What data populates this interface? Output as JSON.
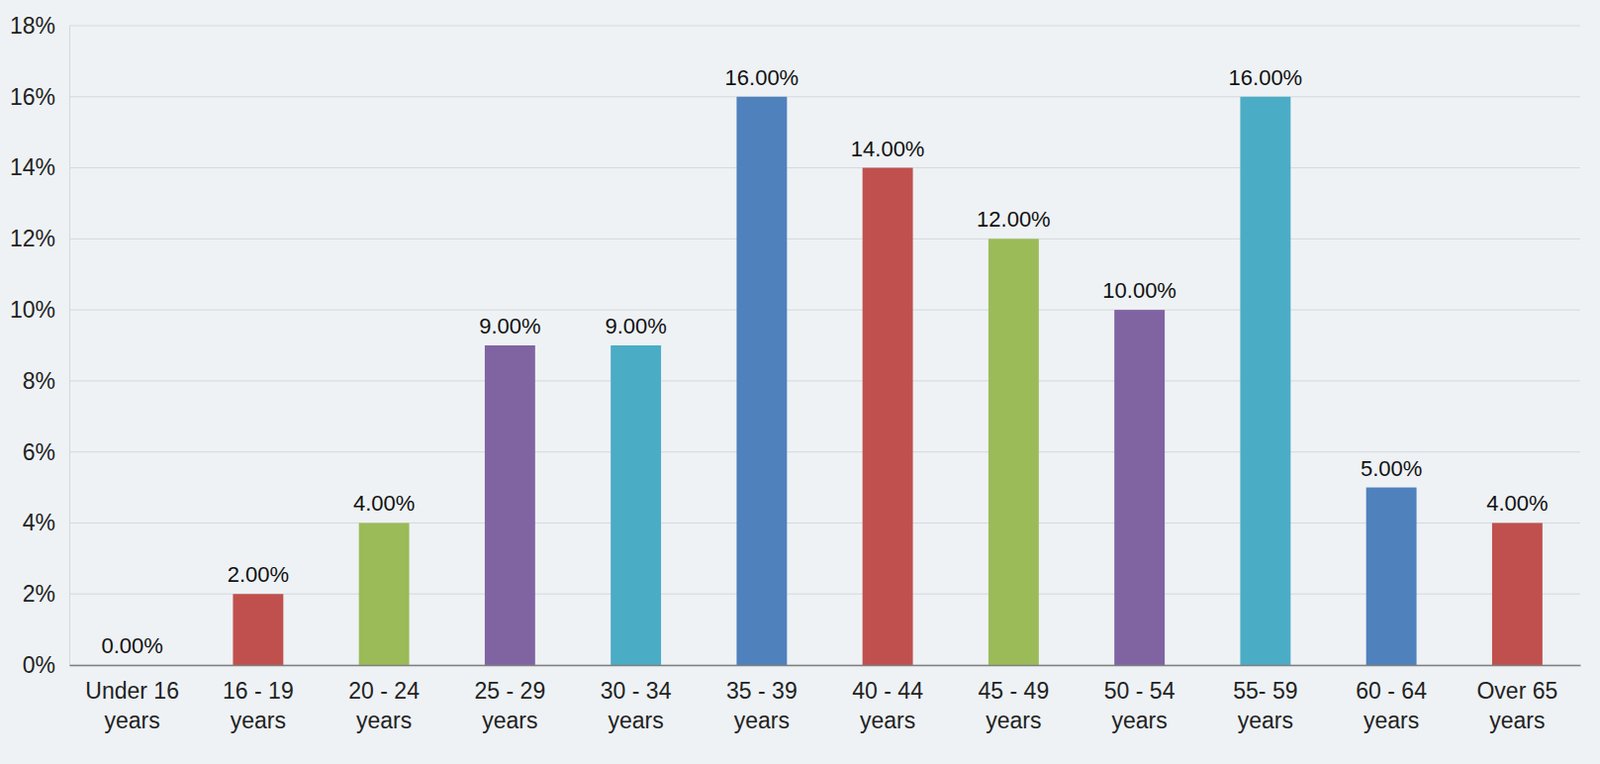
{
  "chart_data": {
    "type": "bar",
    "categories": [
      "Under 16 years",
      "16 - 19 years",
      "20 - 24 years",
      "25 - 29 years",
      "30 - 34 years",
      "35 - 39 years",
      "40 - 44 years",
      "45 - 49 years",
      "50 - 54 years",
      "55- 59 years",
      "60 - 64 years",
      "Over 65 years"
    ],
    "values": [
      0,
      2,
      4,
      9,
      9,
      16,
      14,
      12,
      10,
      16,
      5,
      4
    ],
    "value_labels": [
      "0.00%",
      "2.00%",
      "4.00%",
      "9.00%",
      "9.00%",
      "16.00%",
      "14.00%",
      "12.00%",
      "10.00%",
      "16.00%",
      "5.00%",
      "4.00%"
    ],
    "colors": [
      "#4f81bd",
      "#c0504d",
      "#9bbb59",
      "#8064a2",
      "#4bacc6",
      "#4f81bd",
      "#c0504d",
      "#9bbb59",
      "#8064a2",
      "#4bacc6",
      "#4f81bd",
      "#c0504d"
    ],
    "ylim": [
      0,
      18
    ],
    "yticks": [
      {
        "value": 0,
        "label": "0%"
      },
      {
        "value": 2,
        "label": "2%"
      },
      {
        "value": 4,
        "label": "4%"
      },
      {
        "value": 6,
        "label": "6%"
      },
      {
        "value": 8,
        "label": "8%"
      },
      {
        "value": 10,
        "label": "10%"
      },
      {
        "value": 12,
        "label": "12%"
      },
      {
        "value": 14,
        "label": "14%"
      },
      {
        "value": 16,
        "label": "16%"
      },
      {
        "value": 18,
        "label": "18%"
      }
    ],
    "grid": true,
    "data_labels": true
  }
}
